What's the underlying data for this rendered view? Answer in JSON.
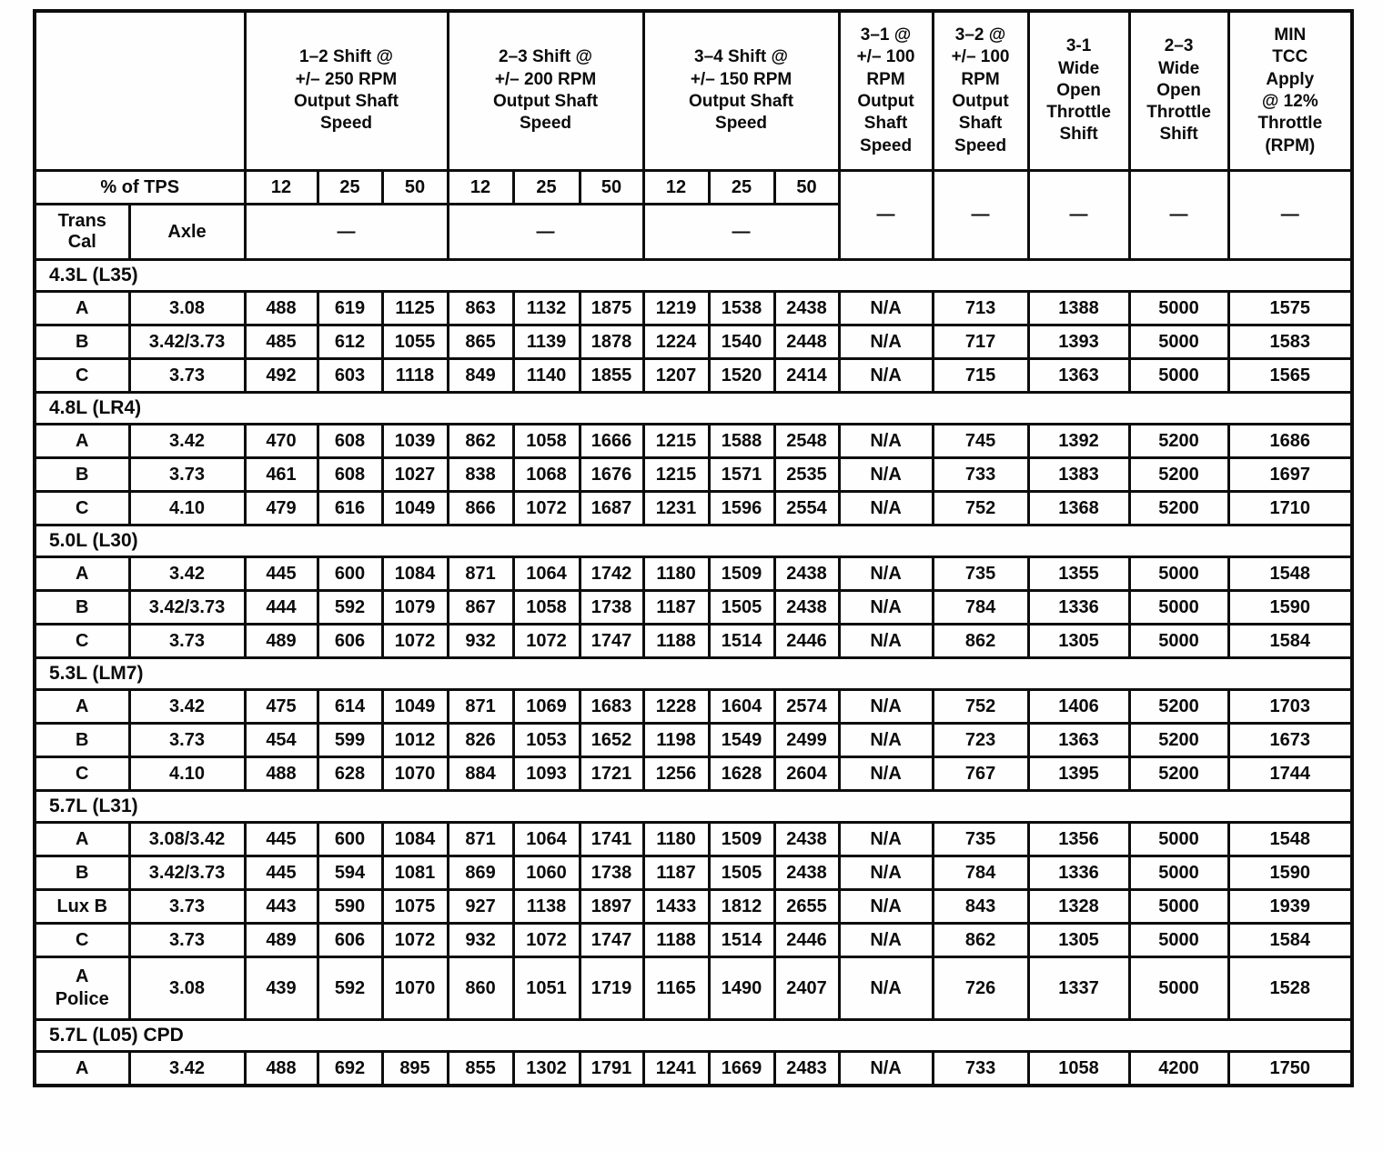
{
  "header": {
    "corner": "",
    "tps_label": "% of TPS",
    "trans_cal_label": "Trans\nCal",
    "axle_label": "Axle",
    "groups": [
      {
        "title": "1–2 Shift @\n+/– 250 RPM\nOutput Shaft\nSpeed",
        "subcols": [
          "12",
          "25",
          "50"
        ],
        "dash": "—"
      },
      {
        "title": "2–3 Shift @\n+/– 200 RPM\nOutput Shaft\nSpeed",
        "subcols": [
          "12",
          "25",
          "50"
        ],
        "dash": "—"
      },
      {
        "title": "3–4 Shift @\n+/– 150 RPM\nOutput Shaft\nSpeed",
        "subcols": [
          "12",
          "25",
          "50"
        ],
        "dash": "—"
      }
    ],
    "singles": [
      {
        "title": "3–1 @\n+/– 100\nRPM\nOutput\nShaft\nSpeed",
        "dash": "—"
      },
      {
        "title": "3–2 @\n+/– 100\nRPM\nOutput\nShaft\nSpeed",
        "dash": "—"
      },
      {
        "title": "3-1\nWide\nOpen\nThrottle\nShift",
        "dash": "—"
      },
      {
        "title": "2–3\nWide\nOpen\nThrottle\nShift",
        "dash": "—"
      },
      {
        "title": "MIN\nTCC\nApply\n@ 12%\nThrottle\n(RPM)",
        "dash": "—"
      }
    ]
  },
  "sections": [
    {
      "title": "4.3L (L35)",
      "rows": [
        {
          "cal": "A",
          "axle": "3.08",
          "values": [
            "488",
            "619",
            "1125",
            "863",
            "1132",
            "1875",
            "1219",
            "1538",
            "2438",
            "N/A",
            "713",
            "1388",
            "5000",
            "1575"
          ]
        },
        {
          "cal": "B",
          "axle": "3.42/3.73",
          "values": [
            "485",
            "612",
            "1055",
            "865",
            "1139",
            "1878",
            "1224",
            "1540",
            "2448",
            "N/A",
            "717",
            "1393",
            "5000",
            "1583"
          ]
        },
        {
          "cal": "C",
          "axle": "3.73",
          "values": [
            "492",
            "603",
            "1118",
            "849",
            "1140",
            "1855",
            "1207",
            "1520",
            "2414",
            "N/A",
            "715",
            "1363",
            "5000",
            "1565"
          ]
        }
      ]
    },
    {
      "title": "4.8L (LR4)",
      "rows": [
        {
          "cal": "A",
          "axle": "3.42",
          "values": [
            "470",
            "608",
            "1039",
            "862",
            "1058",
            "1666",
            "1215",
            "1588",
            "2548",
            "N/A",
            "745",
            "1392",
            "5200",
            "1686"
          ]
        },
        {
          "cal": "B",
          "axle": "3.73",
          "values": [
            "461",
            "608",
            "1027",
            "838",
            "1068",
            "1676",
            "1215",
            "1571",
            "2535",
            "N/A",
            "733",
            "1383",
            "5200",
            "1697"
          ]
        },
        {
          "cal": "C",
          "axle": "4.10",
          "values": [
            "479",
            "616",
            "1049",
            "866",
            "1072",
            "1687",
            "1231",
            "1596",
            "2554",
            "N/A",
            "752",
            "1368",
            "5200",
            "1710"
          ]
        }
      ]
    },
    {
      "title": "5.0L (L30)",
      "rows": [
        {
          "cal": "A",
          "axle": "3.42",
          "values": [
            "445",
            "600",
            "1084",
            "871",
            "1064",
            "1742",
            "1180",
            "1509",
            "2438",
            "N/A",
            "735",
            "1355",
            "5000",
            "1548"
          ]
        },
        {
          "cal": "B",
          "axle": "3.42/3.73",
          "values": [
            "444",
            "592",
            "1079",
            "867",
            "1058",
            "1738",
            "1187",
            "1505",
            "2438",
            "N/A",
            "784",
            "1336",
            "5000",
            "1590"
          ]
        },
        {
          "cal": "C",
          "axle": "3.73",
          "values": [
            "489",
            "606",
            "1072",
            "932",
            "1072",
            "1747",
            "1188",
            "1514",
            "2446",
            "N/A",
            "862",
            "1305",
            "5000",
            "1584"
          ]
        }
      ]
    },
    {
      "title": "5.3L (LM7)",
      "rows": [
        {
          "cal": "A",
          "axle": "3.42",
          "values": [
            "475",
            "614",
            "1049",
            "871",
            "1069",
            "1683",
            "1228",
            "1604",
            "2574",
            "N/A",
            "752",
            "1406",
            "5200",
            "1703"
          ]
        },
        {
          "cal": "B",
          "axle": "3.73",
          "values": [
            "454",
            "599",
            "1012",
            "826",
            "1053",
            "1652",
            "1198",
            "1549",
            "2499",
            "N/A",
            "723",
            "1363",
            "5200",
            "1673"
          ]
        },
        {
          "cal": "C",
          "axle": "4.10",
          "values": [
            "488",
            "628",
            "1070",
            "884",
            "1093",
            "1721",
            "1256",
            "1628",
            "2604",
            "N/A",
            "767",
            "1395",
            "5200",
            "1744"
          ]
        }
      ]
    },
    {
      "title": "5.7L (L31)",
      "rows": [
        {
          "cal": "A",
          "axle": "3.08/3.42",
          "values": [
            "445",
            "600",
            "1084",
            "871",
            "1064",
            "1741",
            "1180",
            "1509",
            "2438",
            "N/A",
            "735",
            "1356",
            "5000",
            "1548"
          ]
        },
        {
          "cal": "B",
          "axle": "3.42/3.73",
          "values": [
            "445",
            "594",
            "1081",
            "869",
            "1060",
            "1738",
            "1187",
            "1505",
            "2438",
            "N/A",
            "784",
            "1336",
            "5000",
            "1590"
          ]
        },
        {
          "cal": "Lux B",
          "axle": "3.73",
          "values": [
            "443",
            "590",
            "1075",
            "927",
            "1138",
            "1897",
            "1433",
            "1812",
            "2655",
            "N/A",
            "843",
            "1328",
            "5000",
            "1939"
          ]
        },
        {
          "cal": "C",
          "axle": "3.73",
          "values": [
            "489",
            "606",
            "1072",
            "932",
            "1072",
            "1747",
            "1188",
            "1514",
            "2446",
            "N/A",
            "862",
            "1305",
            "5000",
            "1584"
          ]
        },
        {
          "cal": "A\nPolice",
          "axle": "3.08",
          "tall": true,
          "values": [
            "439",
            "592",
            "1070",
            "860",
            "1051",
            "1719",
            "1165",
            "1490",
            "2407",
            "N/A",
            "726",
            "1337",
            "5000",
            "1528"
          ]
        }
      ]
    },
    {
      "title": "5.7L (L05) CPD",
      "rows": [
        {
          "cal": "A",
          "axle": "3.42",
          "values": [
            "488",
            "692",
            "895",
            "855",
            "1302",
            "1791",
            "1241",
            "1669",
            "2483",
            "N/A",
            "733",
            "1058",
            "4200",
            "1750"
          ]
        }
      ]
    }
  ]
}
